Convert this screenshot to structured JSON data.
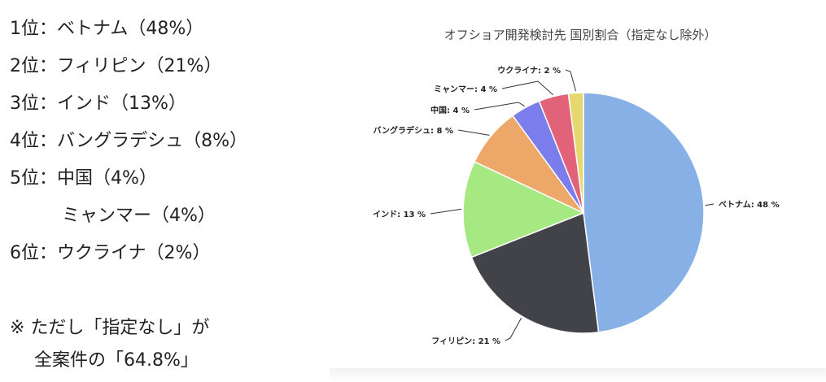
{
  "ranking": [
    {
      "text": "1位：ベトナム（48%）",
      "indent": false
    },
    {
      "text": "2位：フィリピン（21%）",
      "indent": false
    },
    {
      "text": "3位：インド（13%）",
      "indent": false
    },
    {
      "text": "4位：バングラデシュ（8%）",
      "indent": false
    },
    {
      "text": "5位：中国（4%）",
      "indent": false
    },
    {
      "text": "ミャンマー（4%）",
      "indent": true
    },
    {
      "text": "6位：ウクライナ（2%）",
      "indent": false
    }
  ],
  "note": {
    "line1": "※ ただし「指定なし」が",
    "line2": "全案件の「64.8%」"
  },
  "chart_data": {
    "type": "pie",
    "title": "オフショア開発検討先 国別割合（指定なし除外）",
    "slices": [
      {
        "name": "ベトナム",
        "value": 48,
        "label": "ベトナム: 48 %",
        "color": "#86b0e6"
      },
      {
        "name": "フィリピン",
        "value": 21,
        "label": "フィリピン: 21 %",
        "color": "#424249"
      },
      {
        "name": "インド",
        "value": 13,
        "label": "インド: 13 %",
        "color": "#a6e882"
      },
      {
        "name": "バングラデシュ",
        "value": 8,
        "label": "バングラデシュ: 8 %",
        "color": "#eca769"
      },
      {
        "name": "中国",
        "value": 4,
        "label": "中国: 4 %",
        "color": "#7b7ded"
      },
      {
        "name": "ミャンマー",
        "value": 4,
        "label": "ミャンマー: 4 %",
        "color": "#e2627a"
      },
      {
        "name": "ウクライナ",
        "value": 2,
        "label": "ウクライナ: 2 %",
        "color": "#e6d86e"
      }
    ],
    "start": "top",
    "direction": "clockwise",
    "legend": "none"
  }
}
